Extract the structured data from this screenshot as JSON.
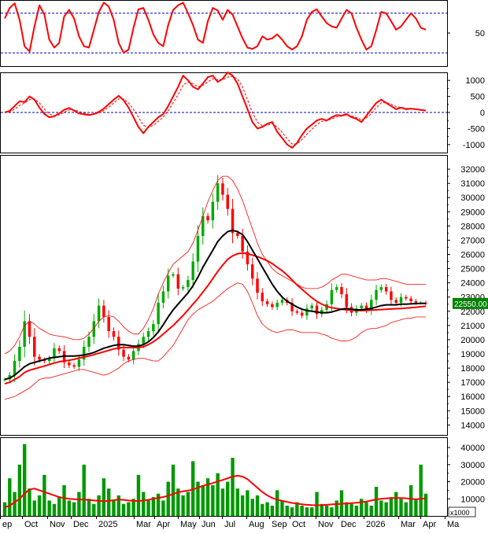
{
  "chart_data": {
    "type": "line",
    "x_axis": {
      "labels": [
        "ep",
        "Oct",
        "Nov",
        "Dec",
        "2025",
        "Mar",
        "Apr",
        "May",
        "Jun",
        "Jul",
        "Aug",
        "Sep",
        "Oct",
        "Nov",
        "Dec",
        "2026",
        "Mar",
        "Apr",
        "Ma"
      ]
    },
    "last_price_label": "22550.00",
    "volume_unit_label": "x1000",
    "colors": {
      "up_candle": "#00aa00",
      "down_candle": "#ff0000",
      "ma_fast": "#000000",
      "ma_slow": "#ff0000",
      "bands": "#ff0000",
      "last_price_bg": "#008000",
      "reference_line": "#0000cc",
      "volume": "#009900"
    },
    "panels": [
      {
        "name": "oscillator",
        "type": "line",
        "ylim": [
          0,
          100
        ],
        "ticks": [
          50
        ],
        "guides": [
          20,
          80
        ],
        "series": [
          {
            "values": [
              72,
              88,
              95,
              70,
              30,
              22,
              60,
              92,
              78,
              40,
              28,
              35,
              75,
              85,
              72,
              45,
              30,
              28,
              55,
              82,
              96,
              90,
              70,
              35,
              20,
              25,
              58,
              86,
              88,
              70,
              48,
              35,
              30,
              62,
              85,
              92,
              96,
              80,
              62,
              40,
              35,
              68,
              88,
              84,
              70,
              85,
              78,
              60,
              42,
              28,
              26,
              30,
              45,
              40,
              42,
              48,
              40,
              30,
              25,
              30,
              45,
              70,
              82,
              86,
              75,
              65,
              60,
              58,
              72,
              85,
              80,
              58,
              40,
              25,
              30,
              55,
              82,
              80,
              68,
              55,
              60,
              70,
              80,
              72,
              58,
              55
            ]
          }
        ]
      },
      {
        "name": "macd",
        "type": "line",
        "ylim": [
          -1250,
          1250
        ],
        "ticks": [
          1000,
          500,
          0,
          -500,
          -1000
        ],
        "guides": [
          0
        ],
        "series": [
          {
            "values": [
              0,
              50,
              200,
              350,
              320,
              500,
              400,
              150,
              -50,
              -150,
              -120,
              -30,
              80,
              140,
              60,
              -30,
              -60,
              -80,
              -50,
              20,
              120,
              260,
              400,
              520,
              380,
              150,
              -150,
              -450,
              -650,
              -450,
              -300,
              -150,
              -50,
              200,
              500,
              800,
              1150,
              1000,
              800,
              720,
              900,
              1100,
              1150,
              950,
              1050,
              1250,
              1150,
              900,
              500,
              100,
              -300,
              -500,
              -450,
              -350,
              -300,
              -600,
              -800,
              -1000,
              -1100,
              -950,
              -700,
              -500,
              -380,
              -250,
              -200,
              -250,
              -150,
              -80,
              -100,
              -50,
              -150,
              -200,
              -300,
              -100,
              100,
              300,
              400,
              300,
              200,
              100,
              150,
              100,
              120,
              100,
              80,
              60
            ]
          },
          {
            "values": [
              0,
              20,
              100,
              220,
              290,
              400,
              420,
              300,
              100,
              -50,
              -100,
              -70,
              0,
              80,
              80,
              30,
              -20,
              -60,
              -60,
              -20,
              60,
              160,
              300,
              420,
              420,
              300,
              100,
              -150,
              -400,
              -470,
              -400,
              -280,
              -150,
              50,
              300,
              550,
              850,
              950,
              900,
              800,
              850,
              950,
              1050,
              1020,
              1020,
              1100,
              1120,
              1050,
              800,
              400,
              0,
              -300,
              -420,
              -400,
              -350,
              -450,
              -620,
              -820,
              -980,
              -980,
              -850,
              -680,
              -520,
              -380,
              -280,
              -260,
              -200,
              -140,
              -110,
              -80,
              -110,
              -160,
              -230,
              -170,
              -40,
              150,
              300,
              310,
              260,
              180,
              160,
              130,
              120,
              110,
              90,
              70
            ]
          }
        ]
      },
      {
        "name": "price",
        "type": "candlestick",
        "ylim": [
          13300,
          33000
        ],
        "ticks": [
          32000,
          31000,
          30000,
          29000,
          28000,
          27000,
          26000,
          25000,
          24000,
          23000,
          22000,
          21000,
          20000,
          19000,
          18000,
          17000,
          16000,
          15000,
          14000
        ],
        "close": [
          17200,
          17500,
          18500,
          19500,
          21300,
          20200,
          18800,
          18600,
          18500,
          18700,
          19400,
          19200,
          18400,
          18200,
          18100,
          18600,
          19500,
          20200,
          21300,
          22400,
          21600,
          20600,
          20200,
          19300,
          18800,
          18600,
          19200,
          19700,
          20200,
          20600,
          21100,
          22600,
          23400,
          24500,
          24600,
          23600,
          23700,
          24200,
          25500,
          27300,
          28700,
          28400,
          29700,
          31000,
          30200,
          29200,
          27500,
          27300,
          26200,
          25300,
          24300,
          23300,
          22700,
          22500,
          22300,
          22600,
          22800,
          22600,
          22000,
          21900,
          21700,
          22200,
          22400,
          21800,
          22100,
          22500,
          23500,
          23700,
          23200,
          22300,
          21900,
          22200,
          22400,
          22100,
          22800,
          23500,
          23700,
          23400,
          22800,
          22600,
          23000,
          22900,
          22700,
          22600,
          22600,
          22550
        ],
        "ma_fast": [
          17200,
          17300,
          17500,
          17800,
          18100,
          18300,
          18400,
          18500,
          18600,
          18700,
          18750,
          18800,
          18850,
          18850,
          18850,
          18870,
          18920,
          19000,
          19100,
          19250,
          19400,
          19500,
          19600,
          19650,
          19650,
          19600,
          19550,
          19550,
          19650,
          19850,
          20150,
          20550,
          21050,
          21600,
          22100,
          22500,
          22900,
          23300,
          23800,
          24400,
          25100,
          25700,
          26300,
          26900,
          27300,
          27600,
          27700,
          27600,
          27400,
          26900,
          26300,
          25700,
          25100,
          24500,
          23900,
          23400,
          23000,
          22700,
          22500,
          22300,
          22150,
          22050,
          22000,
          21950,
          21900,
          21900,
          21950,
          22050,
          22150,
          22200,
          22150,
          22100,
          22100,
          22150,
          22200,
          22300,
          22400,
          22450,
          22450,
          22450,
          22500,
          22500,
          22520,
          22540,
          22550,
          22560
        ],
        "ma_slow": [
          16900,
          17000,
          17200,
          17400,
          17700,
          17850,
          17950,
          18050,
          18150,
          18250,
          18350,
          18450,
          18500,
          18550,
          18620,
          18700,
          18780,
          18850,
          18950,
          19050,
          19150,
          19250,
          19350,
          19420,
          19450,
          19450,
          19450,
          19450,
          19500,
          19650,
          19850,
          20100,
          20400,
          20700,
          21000,
          21350,
          21700,
          22100,
          22500,
          22900,
          23350,
          23800,
          24300,
          24800,
          25250,
          25650,
          25900,
          26050,
          26100,
          26050,
          25950,
          25850,
          25700,
          25550,
          25350,
          25100,
          24850,
          24550,
          24200,
          23850,
          23550,
          23250,
          22950,
          22700,
          22500,
          22350,
          22250,
          22200,
          22150,
          22100,
          22080,
          22060,
          22050,
          22060,
          22080,
          22100,
          22120,
          22140,
          22160,
          22180,
          22200,
          22220,
          22250,
          22280,
          22320,
          22350
        ],
        "band_upper": [
          19000,
          19200,
          19600,
          20200,
          21000,
          21300,
          21100,
          20800,
          20600,
          20400,
          20300,
          20250,
          20200,
          20100,
          20000,
          20000,
          20100,
          20400,
          20800,
          21300,
          21600,
          21700,
          21600,
          21300,
          20900,
          20600,
          20400,
          20400,
          20800,
          21400,
          22200,
          23200,
          24000,
          24700,
          25300,
          25600,
          25900,
          26200,
          26800,
          27700,
          28700,
          29700,
          30500,
          31200,
          31500,
          31500,
          31200,
          30600,
          29800,
          28800,
          27800,
          26800,
          26000,
          25500,
          25000,
          24700,
          24500,
          24300,
          24100,
          23900,
          23700,
          23600,
          23600,
          23600,
          23700,
          23900,
          24200,
          24400,
          24600,
          24600,
          24500,
          24400,
          24300,
          24200,
          24200,
          24200,
          24300,
          24300,
          24200,
          24100,
          24000,
          23900,
          23900,
          23900,
          23900,
          23900
        ],
        "band_lower": [
          15800,
          15900,
          16000,
          16200,
          16400,
          16600,
          16900,
          17200,
          17300,
          17300,
          17400,
          17500,
          17600,
          17700,
          17800,
          17900,
          17900,
          17800,
          17700,
          17600,
          17500,
          17600,
          17800,
          18000,
          18300,
          18500,
          18600,
          18700,
          18700,
          18600,
          18500,
          18500,
          18800,
          19200,
          19600,
          20200,
          20800,
          21400,
          21800,
          22100,
          22300,
          22500,
          22700,
          23000,
          23300,
          23600,
          23800,
          24000,
          23900,
          23400,
          22600,
          21700,
          21100,
          20800,
          20600,
          20500,
          20600,
          20700,
          20700,
          20600,
          20500,
          20500,
          20500,
          20500,
          20400,
          20300,
          20100,
          20000,
          19900,
          19900,
          20000,
          20200,
          20500,
          20700,
          20800,
          20800,
          20900,
          21000,
          21200,
          21300,
          21400,
          21500,
          21500,
          21600,
          21600,
          21600
        ]
      },
      {
        "name": "volume",
        "type": "bar",
        "ylim": [
          0,
          46000
        ],
        "ticks": [
          40000,
          30000,
          20000,
          10000
        ],
        "values": [
          8000,
          22000,
          14000,
          30000,
          42000,
          16000,
          9000,
          12000,
          24000,
          9000,
          7000,
          11000,
          18000,
          9000,
          8000,
          14000,
          30000,
          10000,
          7000,
          12000,
          22000,
          16000,
          9000,
          12000,
          7000,
          8000,
          10000,
          24000,
          14000,
          9000,
          11000,
          13000,
          9000,
          20000,
          30000,
          16000,
          12000,
          14000,
          32000,
          20000,
          18000,
          22000,
          18000,
          25000,
          16000,
          20000,
          34000,
          16000,
          12000,
          15000,
          10000,
          12000,
          7000,
          8000,
          6000,
          15000,
          9000,
          6000,
          5000,
          8000,
          6000,
          5000,
          5000,
          14000,
          7000,
          6000,
          5000,
          9000,
          15000,
          8000,
          7000,
          6000,
          10000,
          8000,
          6000,
          17000,
          9000,
          8000,
          11000,
          14000,
          10000,
          8000,
          18000,
          10000,
          30000,
          13000
        ],
        "ma": [
          5000,
          6000,
          8000,
          10000,
          13000,
          15500,
          16000,
          15000,
          14000,
          13000,
          12000,
          11000,
          10500,
          10000,
          9800,
          9600,
          9500,
          9300,
          9000,
          8800,
          8600,
          8800,
          9200,
          9600,
          9400,
          9000,
          8800,
          8700,
          9000,
          9400,
          10000,
          10600,
          11000,
          11800,
          12800,
          13800,
          14400,
          14800,
          15400,
          16500,
          17600,
          18400,
          19200,
          20200,
          21000,
          22000,
          23000,
          23500,
          23000,
          21500,
          19000,
          16500,
          14000,
          12000,
          10500,
          9500,
          8800,
          8200,
          7600,
          7200,
          6800,
          6500,
          6300,
          6200,
          6300,
          6500,
          6700,
          6900,
          7100,
          7300,
          7500,
          7700,
          8000,
          8400,
          9000,
          9600,
          10000,
          10200,
          10400,
          10500,
          10500,
          10300,
          10000,
          9700,
          10000,
          10200
        ]
      }
    ]
  }
}
